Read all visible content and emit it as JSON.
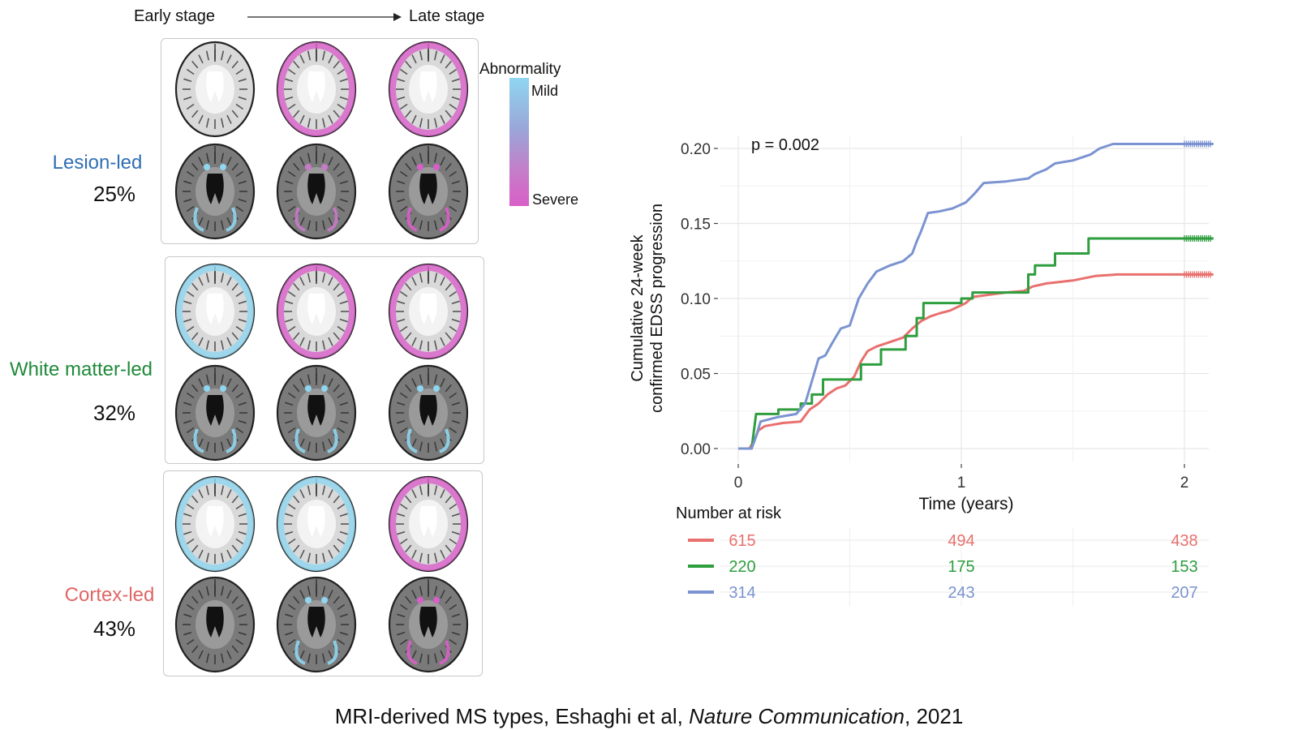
{
  "stages": {
    "early": "Early stage",
    "late": "Late stage"
  },
  "abnormality_legend": {
    "title": "Abnormality",
    "mild": "Mild",
    "severe": "Severe",
    "colors": [
      "#8fd6f0",
      "#9aa6d8",
      "#c77ac8",
      "#d85fc8"
    ]
  },
  "subtypes": [
    {
      "name": "Lesion-led",
      "percent": "25%",
      "color": "#2f6fb3"
    },
    {
      "name": "White matter-led",
      "percent": "32%",
      "color": "#1f8a3a"
    },
    {
      "name": "Cortex-led",
      "percent": "43%",
      "color": "#e06666"
    }
  ],
  "chart_data": {
    "type": "line",
    "annotation": "p = 0.002",
    "ylabel_line1": "Cumulative 24-week",
    "ylabel_line2": "confirmed EDSS progression",
    "xlabel": "Time (years)",
    "xlim": [
      0,
      2.1
    ],
    "ylim": [
      0,
      0.205
    ],
    "x_ticks": [
      0,
      1,
      2
    ],
    "y_ticks": [
      0.0,
      0.05,
      0.1,
      0.15,
      0.2
    ],
    "y_tick_labels": [
      "0.00",
      "0.05",
      "0.10",
      "0.15",
      "0.20"
    ],
    "grid": true,
    "series": [
      {
        "color": "#e8706e",
        "points": [
          [
            0,
            0
          ],
          [
            0.05,
            0
          ],
          [
            0.07,
            0.005
          ],
          [
            0.09,
            0.012
          ],
          [
            0.12,
            0.015
          ],
          [
            0.2,
            0.017
          ],
          [
            0.28,
            0.018
          ],
          [
            0.3,
            0.022
          ],
          [
            0.32,
            0.026
          ],
          [
            0.36,
            0.03
          ],
          [
            0.4,
            0.036
          ],
          [
            0.44,
            0.04
          ],
          [
            0.48,
            0.042
          ],
          [
            0.52,
            0.048
          ],
          [
            0.55,
            0.058
          ],
          [
            0.58,
            0.065
          ],
          [
            0.62,
            0.068
          ],
          [
            0.68,
            0.071
          ],
          [
            0.74,
            0.074
          ],
          [
            0.78,
            0.08
          ],
          [
            0.82,
            0.085
          ],
          [
            0.86,
            0.088
          ],
          [
            0.9,
            0.09
          ],
          [
            0.95,
            0.092
          ],
          [
            1.02,
            0.097
          ],
          [
            1.05,
            0.101
          ],
          [
            1.1,
            0.102
          ],
          [
            1.2,
            0.104
          ],
          [
            1.28,
            0.105
          ],
          [
            1.32,
            0.108
          ],
          [
            1.38,
            0.11
          ],
          [
            1.5,
            0.112
          ],
          [
            1.6,
            0.115
          ],
          [
            1.7,
            0.116
          ],
          [
            2.13,
            0.116
          ]
        ]
      },
      {
        "color": "#2e9e3f",
        "points": [
          [
            0,
            0
          ],
          [
            0.06,
            0
          ],
          [
            0.08,
            0.023
          ],
          [
            0.18,
            0.023
          ],
          [
            0.18,
            0.026
          ],
          [
            0.28,
            0.026
          ],
          [
            0.28,
            0.03
          ],
          [
            0.33,
            0.03
          ],
          [
            0.33,
            0.036
          ],
          [
            0.38,
            0.036
          ],
          [
            0.38,
            0.046
          ],
          [
            0.55,
            0.046
          ],
          [
            0.55,
            0.056
          ],
          [
            0.64,
            0.056
          ],
          [
            0.64,
            0.066
          ],
          [
            0.75,
            0.066
          ],
          [
            0.75,
            0.075
          ],
          [
            0.8,
            0.075
          ],
          [
            0.8,
            0.087
          ],
          [
            0.83,
            0.087
          ],
          [
            0.83,
            0.097
          ],
          [
            1.0,
            0.097
          ],
          [
            1.0,
            0.1
          ],
          [
            1.05,
            0.1
          ],
          [
            1.05,
            0.104
          ],
          [
            1.3,
            0.104
          ],
          [
            1.3,
            0.116
          ],
          [
            1.33,
            0.116
          ],
          [
            1.33,
            0.122
          ],
          [
            1.42,
            0.122
          ],
          [
            1.42,
            0.13
          ],
          [
            1.57,
            0.13
          ],
          [
            1.57,
            0.14
          ],
          [
            2.13,
            0.14
          ]
        ]
      },
      {
        "color": "#7b93d0",
        "points": [
          [
            0,
            0
          ],
          [
            0.06,
            0
          ],
          [
            0.08,
            0.008
          ],
          [
            0.1,
            0.018
          ],
          [
            0.18,
            0.021
          ],
          [
            0.26,
            0.023
          ],
          [
            0.3,
            0.03
          ],
          [
            0.33,
            0.045
          ],
          [
            0.36,
            0.06
          ],
          [
            0.39,
            0.062
          ],
          [
            0.42,
            0.07
          ],
          [
            0.46,
            0.08
          ],
          [
            0.5,
            0.082
          ],
          [
            0.54,
            0.1
          ],
          [
            0.58,
            0.11
          ],
          [
            0.62,
            0.118
          ],
          [
            0.68,
            0.122
          ],
          [
            0.74,
            0.125
          ],
          [
            0.78,
            0.13
          ],
          [
            0.8,
            0.138
          ],
          [
            0.82,
            0.145
          ],
          [
            0.85,
            0.157
          ],
          [
            0.9,
            0.158
          ],
          [
            0.96,
            0.16
          ],
          [
            1.02,
            0.164
          ],
          [
            1.06,
            0.17
          ],
          [
            1.1,
            0.177
          ],
          [
            1.2,
            0.178
          ],
          [
            1.3,
            0.18
          ],
          [
            1.33,
            0.183
          ],
          [
            1.38,
            0.186
          ],
          [
            1.42,
            0.19
          ],
          [
            1.5,
            0.192
          ],
          [
            1.58,
            0.196
          ],
          [
            1.62,
            0.2
          ],
          [
            1.68,
            0.203
          ],
          [
            2.13,
            0.203
          ]
        ]
      }
    ],
    "risk_table": {
      "title": "Number at risk",
      "rows": [
        {
          "color": "#e8706e",
          "values": [
            "615",
            "494",
            "438"
          ]
        },
        {
          "color": "#2e9e3f",
          "values": [
            "220",
            "175",
            "153"
          ]
        },
        {
          "color": "#7b93d0",
          "values": [
            "314",
            "243",
            "207"
          ]
        }
      ]
    }
  },
  "caption": {
    "pre": "MRI-derived MS types, Eshaghi et al, ",
    "journal": "Nature Communication",
    "post": ", 2021"
  }
}
